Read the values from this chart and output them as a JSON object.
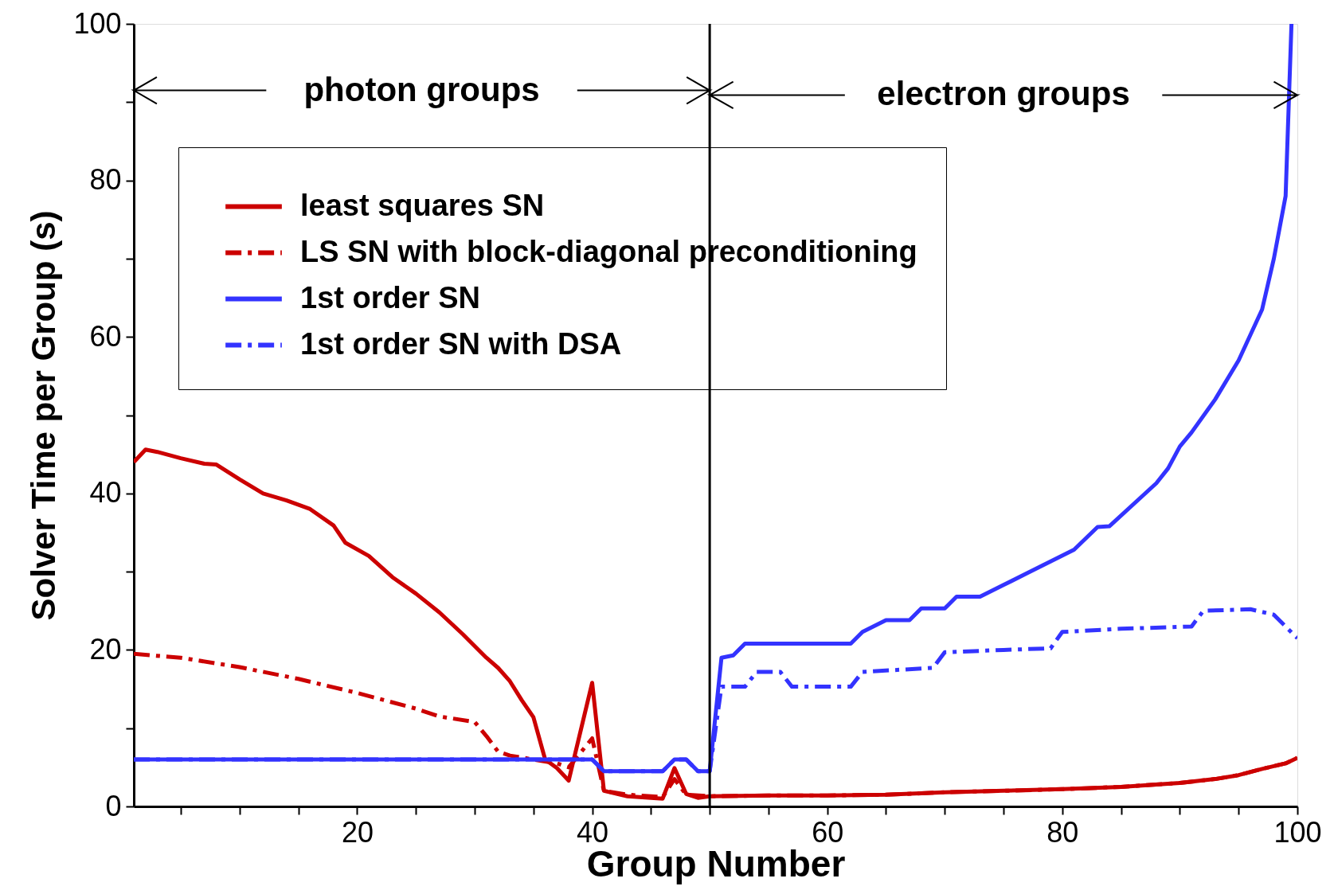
{
  "chart_data": {
    "type": "line",
    "xlabel": "Group Number",
    "ylabel": "Solver Time per Group (s)",
    "xlim": [
      1,
      100
    ],
    "ylim": [
      0,
      100
    ],
    "xticks": [
      {
        "value": 5,
        "label": null
      },
      {
        "value": 10,
        "label": null
      },
      {
        "value": 15,
        "label": null
      },
      20,
      {
        "value": 25,
        "label": null
      },
      {
        "value": 30,
        "label": null
      },
      {
        "value": 35,
        "label": null
      },
      40,
      {
        "value": 45,
        "label": null
      },
      {
        "value": 50,
        "label": null
      },
      {
        "value": 55,
        "label": null
      },
      60,
      {
        "value": 65,
        "label": null
      },
      {
        "value": 70,
        "label": null
      },
      {
        "value": 75,
        "label": null
      },
      80,
      {
        "value": 85,
        "label": null
      },
      {
        "value": 90,
        "label": null
      },
      {
        "value": 95,
        "label": null
      },
      100
    ],
    "yticks": [
      0,
      {
        "value": 10,
        "label": null
      },
      20,
      {
        "value": 30,
        "label": null
      },
      40,
      {
        "value": 50,
        "label": null
      },
      60,
      {
        "value": 70,
        "label": null
      },
      80,
      {
        "value": 90,
        "label": null
      },
      100
    ],
    "grid": false,
    "legend": "top",
    "marker": "none",
    "ref_lines": [
      {
        "axis": "x",
        "value": 50,
        "color": "#000000",
        "line_style": "solid"
      }
    ],
    "annotations": [
      "photon groups",
      "electron groups"
    ],
    "series": [
      {
        "name": "least squares SN",
        "color": "#cc0000",
        "line_style": "solid",
        "x": [
          1,
          2,
          3,
          5,
          7,
          8,
          10,
          12,
          14,
          16,
          18,
          19,
          21,
          23,
          25,
          27,
          29,
          31,
          32,
          33,
          34,
          35,
          36,
          37,
          38,
          40,
          41,
          43,
          46,
          47,
          48,
          49,
          50,
          55,
          60,
          65,
          70,
          75,
          80,
          85,
          90,
          93,
          95,
          97,
          99,
          100
        ],
        "values": [
          44,
          45.6,
          45.3,
          44.5,
          43.8,
          43.7,
          41.8,
          40,
          39.1,
          38,
          35.9,
          33.7,
          32,
          29.3,
          27.2,
          24.8,
          22,
          19,
          17.7,
          16,
          13.6,
          11.4,
          6,
          4.9,
          3.3,
          15.8,
          2,
          1.3,
          1,
          4.9,
          1.6,
          1.1,
          1.3,
          1.4,
          1.4,
          1.5,
          1.8,
          2,
          2.2,
          2.5,
          3,
          3.5,
          4,
          4.8,
          5.5,
          6.2
        ]
      },
      {
        "name": "LS SN with block-diagonal preconditioning",
        "color": "#cc0000",
        "line_style": "dashed",
        "x": [
          1,
          5,
          10,
          15,
          20,
          25,
          27,
          30,
          31,
          32,
          33,
          35,
          37,
          38,
          40,
          41,
          43,
          46,
          47,
          48,
          50,
          55,
          60,
          65,
          70,
          75,
          80,
          85,
          90,
          93,
          95,
          97,
          99,
          100
        ],
        "values": [
          19.5,
          19,
          17.8,
          16.3,
          14.5,
          12.5,
          11.5,
          10.8,
          9,
          7,
          6.5,
          6,
          5.5,
          5,
          8.7,
          2,
          1.5,
          1.2,
          3.5,
          1.5,
          1.3,
          1.4,
          1.4,
          1.5,
          1.8,
          2,
          2.2,
          2.5,
          3,
          3.5,
          4,
          4.8,
          5.5,
          6.2
        ]
      },
      {
        "name": "1st order SN",
        "color": "#3333ff",
        "line_style": "solid",
        "x": [
          1,
          40,
          41,
          46,
          47,
          48,
          49,
          50,
          51,
          52,
          53,
          62,
          63,
          65,
          67,
          68,
          70,
          71,
          73,
          75,
          77,
          79,
          81,
          83,
          84,
          88,
          89,
          90,
          91,
          93,
          95,
          97,
          98,
          99,
          99.5
        ],
        "values": [
          6,
          6,
          4.5,
          4.5,
          6,
          6,
          4.5,
          4.5,
          19,
          19.3,
          20.8,
          20.8,
          22.3,
          23.8,
          23.8,
          25.3,
          25.3,
          26.8,
          26.8,
          28.3,
          29.8,
          31.3,
          32.8,
          35.7,
          35.8,
          41.3,
          43.2,
          46,
          47.8,
          52,
          57,
          63.5,
          70,
          78,
          100
        ]
      },
      {
        "name": "1st order SN  with DSA",
        "color": "#3333ff",
        "line_style": "dashed",
        "x": [
          1,
          40,
          41,
          46,
          47,
          48,
          49,
          50,
          51,
          53,
          54,
          56,
          57,
          62,
          63,
          69,
          70,
          75,
          79,
          80,
          85,
          91,
          92,
          96,
          98,
          99,
          100
        ],
        "values": [
          6,
          6,
          4.5,
          4.5,
          6,
          6,
          4.5,
          4.5,
          15.3,
          15.3,
          17.2,
          17.2,
          15.3,
          15.3,
          17.2,
          17.7,
          19.7,
          20,
          20.2,
          22.3,
          22.7,
          23,
          25,
          25.2,
          24.5,
          23,
          21.5
        ]
      }
    ]
  }
}
